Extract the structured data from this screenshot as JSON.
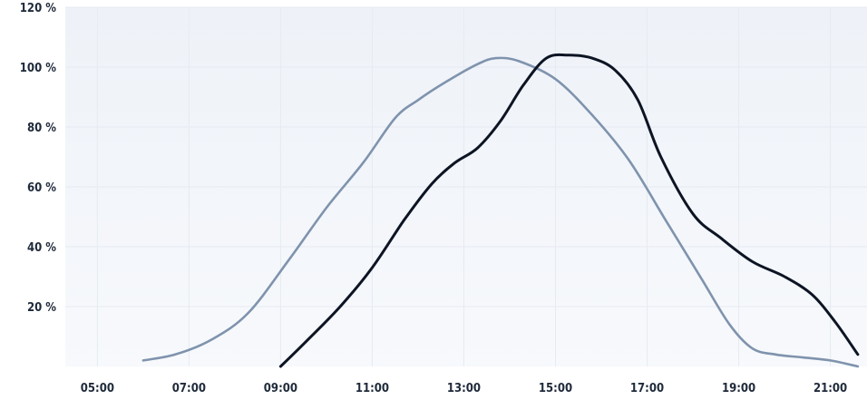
{
  "chart_data": {
    "type": "line",
    "title": "",
    "xlabel": "",
    "ylabel": "",
    "x_ticks": [
      "05:00",
      "07:00",
      "09:00",
      "11:00",
      "13:00",
      "15:00",
      "17:00",
      "19:00",
      "21:00"
    ],
    "y_ticks": [
      "120 %",
      "100 %",
      "80 %",
      "60 %",
      "40 %",
      "20 %"
    ],
    "xlim": [
      4.3,
      21.8
    ],
    "ylim": [
      0,
      120
    ],
    "grid": true,
    "legend": "none",
    "series": [
      {
        "color": "#7f93ad",
        "x": [
          6.0,
          6.7,
          7.5,
          8.3,
          9.2,
          10.0,
          10.8,
          11.5,
          12.0,
          12.6,
          13.3,
          13.7,
          14.2,
          15.0,
          15.8,
          16.6,
          17.4,
          18.2,
          18.8,
          19.3,
          19.8,
          20.4,
          21.0,
          21.6
        ],
        "y": [
          2,
          4,
          9,
          18,
          36,
          53,
          68,
          83,
          89,
          95,
          101,
          103,
          102,
          96,
          84,
          69,
          49,
          29,
          14,
          6,
          4,
          3,
          2,
          0
        ]
      },
      {
        "color": "#0d1423",
        "x": [
          9.0,
          9.6,
          10.3,
          11.0,
          11.7,
          12.3,
          12.8,
          13.3,
          13.8,
          14.3,
          14.8,
          15.3,
          15.8,
          16.3,
          16.8,
          17.3,
          18.0,
          18.6,
          19.3,
          20.0,
          20.6,
          21.1,
          21.6
        ],
        "y": [
          0,
          9,
          20,
          33,
          49,
          61,
          68,
          73,
          82,
          94,
          103,
          104,
          103,
          99,
          89,
          70,
          51,
          43,
          35,
          30,
          24,
          15,
          4
        ]
      }
    ]
  }
}
